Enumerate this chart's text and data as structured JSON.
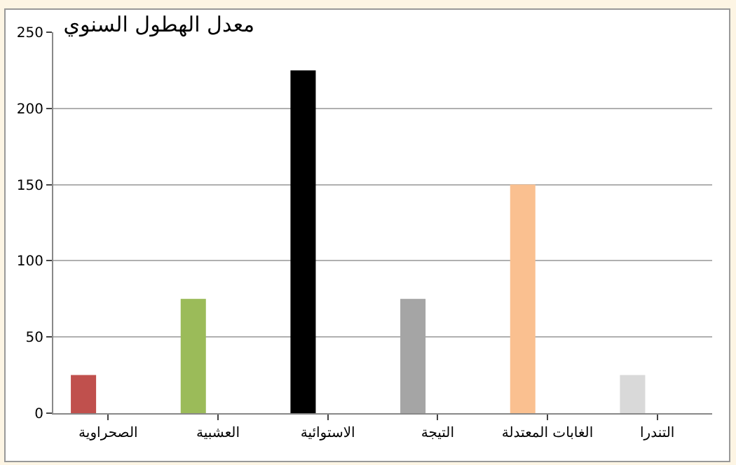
{
  "chart_data": {
    "type": "bar",
    "title": "معدل الهطول السنوي",
    "categories": [
      "الصحراوية",
      "العشبية",
      "الاستوائية",
      "التيجة",
      "الغابات المعتدلة",
      "التندرا"
    ],
    "values": [
      25,
      75,
      225,
      75,
      150,
      25
    ],
    "colors": [
      "#c0504d",
      "#9bbb59",
      "#000000",
      "#a5a5a5",
      "#fac090",
      "#d9d9d9"
    ],
    "ylim": [
      0,
      250
    ],
    "yticks": [
      0,
      50,
      100,
      150,
      200,
      250
    ],
    "grid": "y",
    "legend": false
  }
}
